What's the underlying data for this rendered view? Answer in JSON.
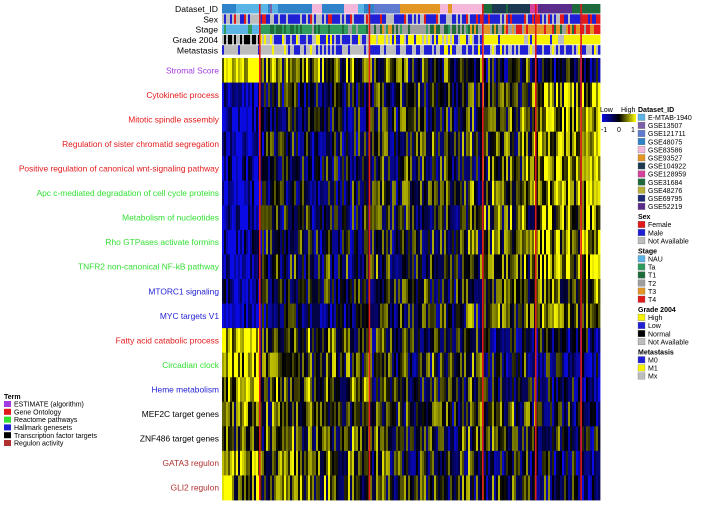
{
  "chart_data": {
    "type": "heatmap",
    "annotation_tracks": [
      "Dataset_ID",
      "Sex",
      "Stage",
      "Grade 2004",
      "Metastasis"
    ],
    "rows": [
      {
        "label": "Stromal Score",
        "term": "ESTIMATE (algorithm)"
      },
      {
        "label": "Cytokinetic process",
        "term": "Gene Ontology"
      },
      {
        "label": "Mitotic spindle assembly",
        "term": "Gene Ontology"
      },
      {
        "label": "Regulation of sister chromatid segregation",
        "term": "Gene Ontology"
      },
      {
        "label": "Positive regulation of canonical wnt-signaling pathway",
        "term": "Gene Ontology"
      },
      {
        "label": "Apc c-mediated degradation of cell cycle proteins",
        "term": "Reactome pathways"
      },
      {
        "label": "Metabolism of nucleotides",
        "term": "Reactome pathways"
      },
      {
        "label": "Rho GTPases activate formins",
        "term": "Reactome pathways"
      },
      {
        "label": "TNFR2 non-canonical NF-kB pathway",
        "term": "Reactome pathways"
      },
      {
        "label": "MTORC1 signaling",
        "term": "Hallmark genesets"
      },
      {
        "label": "MYC targets V1",
        "term": "Hallmark genesets"
      },
      {
        "label": "Fatty acid catabolic process",
        "term": "Gene Ontology"
      },
      {
        "label": "Circadian clock",
        "term": "Reactome pathways"
      },
      {
        "label": "Heme metabolism",
        "term": "Hallmark genesets"
      },
      {
        "label": "MEF2C target genes",
        "term": "Transcription factor targets"
      },
      {
        "label": "ZNF486 target genes",
        "term": "Transcription factor targets"
      },
      {
        "label": "GATA3 regulon",
        "term": "Regulon activity"
      },
      {
        "label": "GLI2 regulon",
        "term": "Regulon activity"
      }
    ],
    "row_bias": [
      1,
      -1,
      -1,
      -1,
      -1,
      -1,
      -1,
      -1,
      -1,
      -1,
      -1,
      0.6,
      0.6,
      0.6,
      0.2,
      0.2,
      0.2,
      0.2
    ],
    "column_groups": [
      {
        "fraction": 0.1
      },
      {
        "fraction": 0.29
      },
      {
        "fraction": 0.3
      },
      {
        "fraction": 0.14
      },
      {
        "fraction": 0.12
      },
      {
        "fraction": 0.05
      }
    ],
    "group_biases": [
      [
        1.0,
        0.3,
        0.1,
        -0.1,
        -0.3,
        -0.5
      ],
      [
        -0.9,
        -0.2,
        0.0,
        0.2,
        0.5,
        0.7
      ],
      [
        -0.9,
        -0.2,
        0.0,
        0.2,
        0.5,
        0.7
      ],
      [
        -0.9,
        -0.2,
        0.0,
        0.2,
        0.5,
        0.7
      ],
      [
        -0.8,
        -0.2,
        0.0,
        0.2,
        0.5,
        0.7
      ],
      [
        -0.9,
        -0.2,
        0.0,
        0.2,
        0.5,
        0.7
      ],
      [
        -0.8,
        -0.2,
        0.0,
        0.2,
        0.5,
        0.7
      ],
      [
        -0.8,
        -0.2,
        0.0,
        0.2,
        0.5,
        0.7
      ],
      [
        -0.8,
        -0.2,
        0.0,
        0.2,
        0.5,
        0.7
      ],
      [
        -0.7,
        -0.2,
        0.0,
        0.2,
        0.4,
        0.6
      ],
      [
        -0.8,
        -0.3,
        0.0,
        0.2,
        0.4,
        0.6
      ],
      [
        0.9,
        0.2,
        0.0,
        -0.2,
        -0.4,
        -0.5
      ],
      [
        0.8,
        0.2,
        0.0,
        -0.2,
        -0.4,
        -0.5
      ],
      [
        0.8,
        0.2,
        0.0,
        -0.2,
        -0.4,
        -0.5
      ],
      [
        0.4,
        0.1,
        0.0,
        0.0,
        -0.2,
        -0.3
      ],
      [
        0.3,
        0.1,
        0.0,
        0.0,
        -0.2,
        -0.3
      ],
      [
        0.5,
        0.2,
        0.0,
        -0.1,
        -0.3,
        -0.4
      ],
      [
        0.5,
        0.2,
        0.0,
        -0.1,
        -0.3,
        -0.4
      ]
    ],
    "color_scale": {
      "title_low": "Low",
      "title_high": "High",
      "ticks": [
        "-1",
        "0",
        "1"
      ],
      "colors": [
        "#0a0ae6",
        "#000000",
        "#ffff00"
      ]
    },
    "legends": [
      {
        "title": "Dataset_ID",
        "entries": [
          {
            "label": "E-MTAB-1940",
            "color": "#5ab4e6"
          },
          {
            "label": "GSE13507",
            "color": "#7b62a8"
          },
          {
            "label": "GSE121711",
            "color": "#5f7bd1"
          },
          {
            "label": "GSE48075",
            "color": "#2f83c8"
          },
          {
            "label": "GSE83586",
            "color": "#f5b8db"
          },
          {
            "label": "GSE93527",
            "color": "#e39624"
          },
          {
            "label": "GSE104922",
            "color": "#1b3a52"
          },
          {
            "label": "GSE128959",
            "color": "#d4429c"
          },
          {
            "label": "GSE31684",
            "color": "#1d6b3a"
          },
          {
            "label": "GSE48276",
            "color": "#b7b037"
          },
          {
            "label": "GSE69795",
            "color": "#1f2a78"
          },
          {
            "label": "GSE52219",
            "color": "#5a2d8c"
          }
        ]
      },
      {
        "title": "Sex",
        "entries": [
          {
            "label": "Female",
            "color": "#e31a1c"
          },
          {
            "label": "Male",
            "color": "#1f1fd6"
          },
          {
            "label": "Not Available",
            "color": "#bdbdbd"
          }
        ]
      },
      {
        "title": "Stage",
        "entries": [
          {
            "label": "NAU",
            "color": "#5ab4e6"
          },
          {
            "label": "Ta",
            "color": "#2f9c5e"
          },
          {
            "label": "T1",
            "color": "#1d6b3a"
          },
          {
            "label": "T2",
            "color": "#9e9e9e"
          },
          {
            "label": "T3",
            "color": "#e39624"
          },
          {
            "label": "T4",
            "color": "#e31a1c"
          }
        ]
      },
      {
        "title": "Grade 2004",
        "entries": [
          {
            "label": "High",
            "color": "#f7f300"
          },
          {
            "label": "Low",
            "color": "#1f1fd6"
          },
          {
            "label": "Normal",
            "color": "#000000"
          },
          {
            "label": "Not Available",
            "color": "#bdbdbd"
          }
        ]
      },
      {
        "title": "Metastasis",
        "entries": [
          {
            "label": "M0",
            "color": "#1f1fd6"
          },
          {
            "label": "M1",
            "color": "#f7f300"
          },
          {
            "label": "Mx",
            "color": "#bdbdbd"
          }
        ]
      }
    ],
    "term_legend": {
      "title": "Term",
      "entries": [
        {
          "label": "ESTIMATE (algorithm)",
          "color": "#a23be0"
        },
        {
          "label": "Gene Ontology",
          "color": "#e31a1c"
        },
        {
          "label": "Reactome pathways",
          "color": "#33e033"
        },
        {
          "label": "Hallmark genesets",
          "color": "#1f1fd6"
        },
        {
          "label": "Transcription factor targets",
          "color": "#000000"
        },
        {
          "label": "Regulon activity",
          "color": "#b03030"
        }
      ]
    }
  }
}
